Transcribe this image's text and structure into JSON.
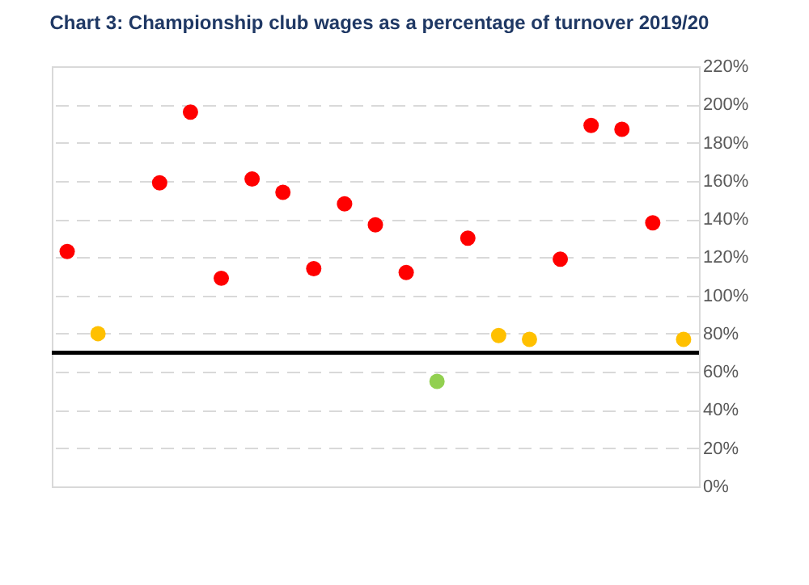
{
  "chart_data": {
    "type": "scatter",
    "title": "Chart 3: Championship club wages as a percentage of turnover 2019/20",
    "categories": [
      null,
      null,
      null,
      null,
      null,
      null,
      null,
      null,
      null,
      null,
      null,
      null,
      null,
      null,
      null,
      null,
      null,
      null,
      null,
      null,
      null
    ],
    "series": [
      {
        "color": "#ff0000",
        "values": [
          123,
          null,
          null,
          159,
          196,
          109,
          161,
          154,
          114,
          148,
          137,
          112,
          null,
          130,
          null,
          null,
          119,
          189,
          187,
          138,
          null
        ]
      },
      {
        "color": "#ffc000",
        "values": [
          null,
          80,
          null,
          null,
          null,
          null,
          null,
          null,
          null,
          null,
          null,
          null,
          null,
          null,
          79,
          77,
          null,
          null,
          null,
          null,
          77
        ]
      },
      {
        "color": "#92d050",
        "values": [
          null,
          null,
          null,
          null,
          null,
          null,
          null,
          null,
          null,
          null,
          null,
          null,
          55,
          null,
          null,
          null,
          null,
          null,
          null,
          null,
          null
        ]
      }
    ],
    "ylim": [
      0,
      220
    ],
    "yticks": [
      {
        "value": 0,
        "label": "0%"
      },
      {
        "value": 20,
        "label": "20%"
      },
      {
        "value": 40,
        "label": "40%"
      },
      {
        "value": 60,
        "label": "60%"
      },
      {
        "value": 80,
        "label": "80%"
      },
      {
        "value": 100,
        "label": "100%"
      },
      {
        "value": 120,
        "label": "120%"
      },
      {
        "value": 140,
        "label": "140%"
      },
      {
        "value": 160,
        "label": "160%"
      },
      {
        "value": 180,
        "label": "180%"
      },
      {
        "value": 200,
        "label": "200%"
      },
      {
        "value": 220,
        "label": "220%"
      }
    ],
    "grid": "y",
    "marker": "circle",
    "ref_lines": [
      {
        "axis": "y",
        "value": 70,
        "color": "#000000"
      }
    ]
  }
}
